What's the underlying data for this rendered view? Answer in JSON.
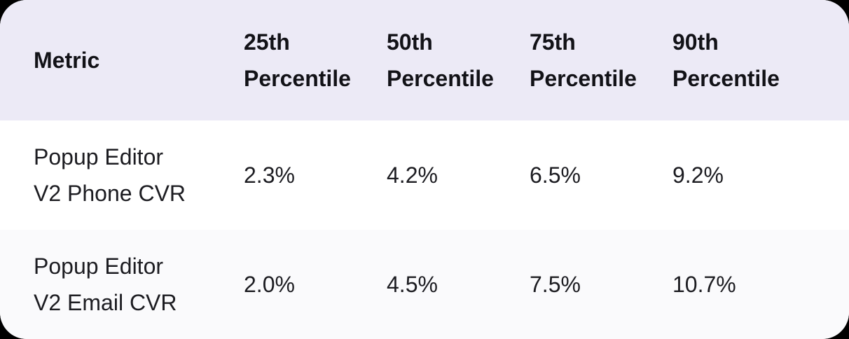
{
  "colors": {
    "page_bg": "#000000",
    "header_bg": "#eceaf6",
    "row_bg": "#ffffff",
    "row_alt_bg": "#fafafc",
    "text_header": "#121217",
    "text_body": "#1c1c21"
  },
  "chart_data": {
    "type": "table",
    "columns": [
      "Metric",
      "25th Percentile",
      "50th Percentile",
      "75th Percentile",
      "90th Percentile"
    ],
    "rows": [
      [
        "Popup Editor V2 Phone CVR",
        "2.3%",
        "4.2%",
        "6.5%",
        "9.2%"
      ],
      [
        "Popup Editor V2 Email CVR",
        "2.0%",
        "4.5%",
        "7.5%",
        "10.7%"
      ]
    ],
    "values_numeric_percent": {
      "Popup Editor V2 Phone CVR": [
        2.3,
        4.2,
        6.5,
        9.2
      ],
      "Popup Editor V2 Email CVR": [
        2.0,
        4.5,
        7.5,
        10.7
      ]
    }
  },
  "ui": {
    "header": {
      "metric": "Metric",
      "p25": {
        "line1": "25th",
        "line2": "Percentile"
      },
      "p50": {
        "line1": "50th",
        "line2": "Percentile"
      },
      "p75": {
        "line1": "75th",
        "line2": "Percentile"
      },
      "p90": {
        "line1": "90th",
        "line2": "Percentile"
      }
    },
    "rows": [
      {
        "metric": {
          "line1": "Popup Editor",
          "line2": "V2 Phone CVR"
        },
        "values": [
          "2.3%",
          "4.2%",
          "6.5%",
          "9.2%"
        ]
      },
      {
        "metric": {
          "line1": "Popup Editor",
          "line2": "V2 Email CVR"
        },
        "values": [
          "2.0%",
          "4.5%",
          "7.5%",
          "10.7%"
        ]
      }
    ]
  }
}
